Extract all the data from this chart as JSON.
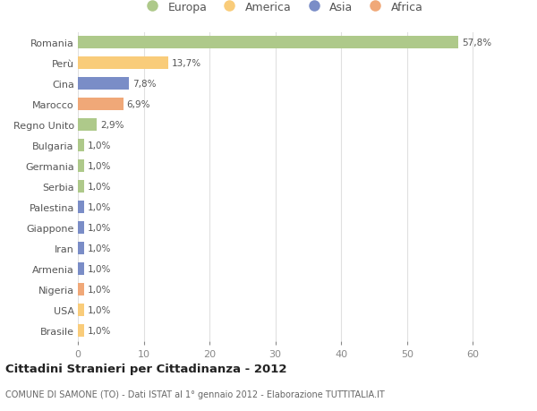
{
  "categories": [
    "Romania",
    "Perù",
    "Cina",
    "Marocco",
    "Regno Unito",
    "Bulgaria",
    "Germania",
    "Serbia",
    "Palestina",
    "Giappone",
    "Iran",
    "Armenia",
    "Nigeria",
    "USA",
    "Brasile"
  ],
  "values": [
    57.8,
    13.7,
    7.8,
    6.9,
    2.9,
    1.0,
    1.0,
    1.0,
    1.0,
    1.0,
    1.0,
    1.0,
    1.0,
    1.0,
    1.0
  ],
  "labels": [
    "57,8%",
    "13,7%",
    "7,8%",
    "6,9%",
    "2,9%",
    "1,0%",
    "1,0%",
    "1,0%",
    "1,0%",
    "1,0%",
    "1,0%",
    "1,0%",
    "1,0%",
    "1,0%",
    "1,0%"
  ],
  "continent": [
    "Europa",
    "America",
    "Asia",
    "Africa",
    "Europa",
    "Europa",
    "Europa",
    "Europa",
    "Asia",
    "Asia",
    "Asia",
    "Asia",
    "Africa",
    "America",
    "America"
  ],
  "colors": {
    "Europa": "#aec98a",
    "America": "#f9cc7a",
    "Asia": "#7a8dc7",
    "Africa": "#f0a878"
  },
  "legend_order": [
    "Europa",
    "America",
    "Asia",
    "Africa"
  ],
  "title": "Cittadini Stranieri per Cittadinanza - 2012",
  "subtitle": "COMUNE DI SAMONE (TO) - Dati ISTAT al 1° gennaio 2012 - Elaborazione TUTTITALIA.IT",
  "xlim": [
    0,
    62
  ],
  "xticks": [
    0,
    10,
    20,
    30,
    40,
    50,
    60
  ],
  "background_color": "#ffffff",
  "grid_color": "#e0e0e0"
}
